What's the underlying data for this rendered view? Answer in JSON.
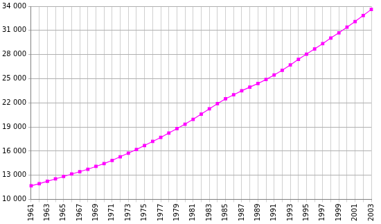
{
  "chart_data": {
    "type": "line",
    "categories": [
      "1961",
      null,
      "1963",
      null,
      "1965",
      null,
      "1967",
      null,
      "1969",
      null,
      "1971",
      null,
      "1973",
      null,
      "1975",
      null,
      "1977",
      null,
      "1979",
      null,
      "1981",
      null,
      "1983",
      null,
      "1985",
      null,
      "1987",
      null,
      "1989",
      null,
      "1991",
      null,
      "1993",
      null,
      "1995",
      null,
      "1997",
      null,
      "1999",
      null,
      "2001",
      null,
      "2003"
    ],
    "values": [
      11700,
      11950,
      12250,
      12550,
      12850,
      13150,
      13450,
      13750,
      14100,
      14450,
      14850,
      15300,
      15750,
      16200,
      16700,
      17200,
      17700,
      18250,
      18800,
      19350,
      19950,
      20600,
      21250,
      21900,
      22500,
      23000,
      23500,
      23950,
      24400,
      24900,
      25450,
      26050,
      26700,
      27400,
      28050,
      28700,
      29350,
      30050,
      30700,
      31400,
      32100,
      32850,
      33600
    ],
    "color": "#ff00ff",
    "marker": "square",
    "line_style": "solid",
    "ylim": [
      10000,
      34000
    ],
    "yticks": [
      {
        "value": 10000,
        "label": "10 000"
      },
      {
        "value": 13000,
        "label": "13 000"
      },
      {
        "value": 16000,
        "label": "16 000"
      },
      {
        "value": 19000,
        "label": "19 000"
      },
      {
        "value": 22000,
        "label": "22 000"
      },
      {
        "value": 25000,
        "label": "25 000"
      },
      {
        "value": 28000,
        "label": "28 000"
      },
      {
        "value": 31000,
        "label": "31 000"
      },
      {
        "value": 34000,
        "label": "34 000"
      }
    ],
    "grid": true
  }
}
